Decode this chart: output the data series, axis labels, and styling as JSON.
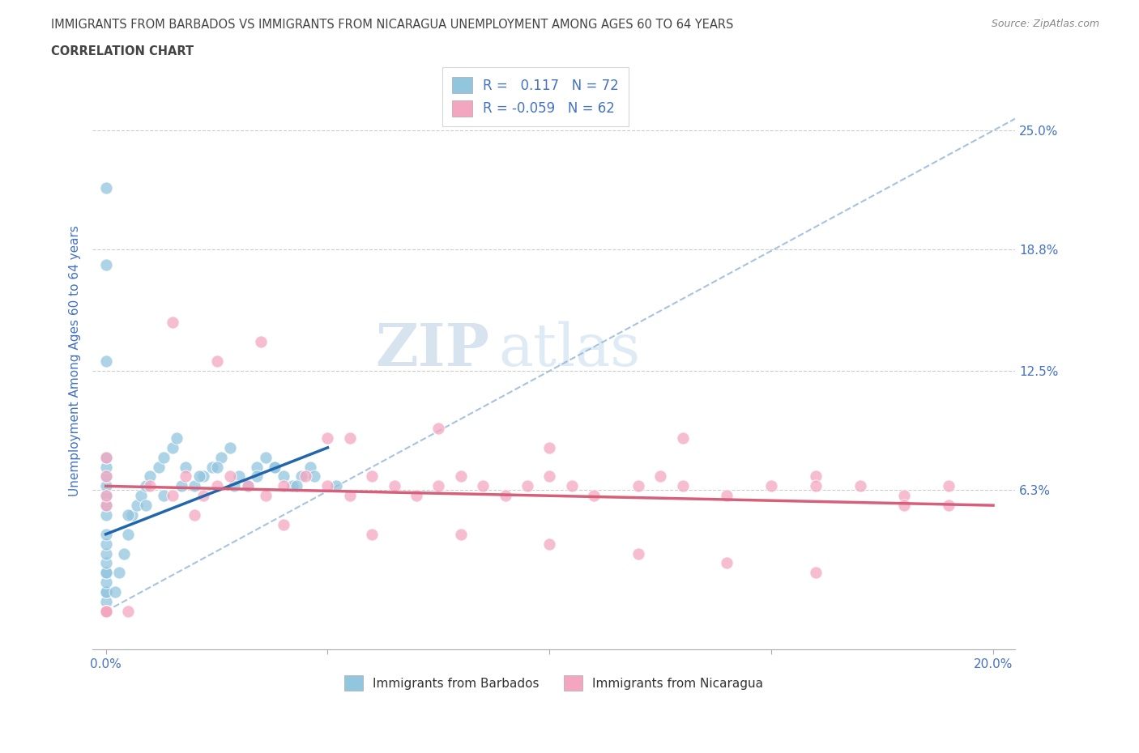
{
  "title_line1": "IMMIGRANTS FROM BARBADOS VS IMMIGRANTS FROM NICARAGUA UNEMPLOYMENT AMONG AGES 60 TO 64 YEARS",
  "title_line2": "CORRELATION CHART",
  "source_text": "Source: ZipAtlas.com",
  "ylabel": "Unemployment Among Ages 60 to 64 years",
  "xlim": [
    -0.003,
    0.205
  ],
  "ylim": [
    -0.02,
    0.28
  ],
  "xticks": [
    0.0,
    0.05,
    0.1,
    0.15,
    0.2
  ],
  "xticklabels": [
    "0.0%",
    "",
    "",
    "",
    "20.0%"
  ],
  "ytick_labels_right": [
    "6.3%",
    "12.5%",
    "18.8%",
    "25.0%"
  ],
  "ytick_values_right": [
    0.063,
    0.125,
    0.188,
    0.25
  ],
  "r_barbados": 0.117,
  "n_barbados": 72,
  "r_nicaragua": -0.059,
  "n_nicaragua": 62,
  "color_barbados": "#92c5de",
  "color_nicaragua": "#f4a6c0",
  "color_trendline_barbados": "#2166ac",
  "color_trendline_nicaragua": "#d6607a",
  "color_dashed": "#92b4d8",
  "title_color": "#444444",
  "axis_label_color": "#4472c4",
  "tick_label_color": "#4472c4",
  "legend_r_color": "#4472c4",
  "watermark_color": "#c8d8ee",
  "background_color": "#ffffff",
  "grid_color": "#cccccc",
  "barbados_x": [
    0.0,
    0.0,
    0.0,
    0.0,
    0.0,
    0.0,
    0.0,
    0.0,
    0.0,
    0.0,
    0.0,
    0.0,
    0.0,
    0.0,
    0.0,
    0.0,
    0.0,
    0.0,
    0.0,
    0.0,
    0.0,
    0.0,
    0.0,
    0.0,
    0.0,
    0.0,
    0.0,
    0.0,
    0.0,
    0.0,
    0.002,
    0.003,
    0.004,
    0.005,
    0.006,
    0.007,
    0.008,
    0.009,
    0.01,
    0.012,
    0.013,
    0.015,
    0.016,
    0.018,
    0.02,
    0.022,
    0.024,
    0.026,
    0.028,
    0.03,
    0.032,
    0.034,
    0.036,
    0.038,
    0.04,
    0.042,
    0.044,
    0.046,
    0.005,
    0.009,
    0.013,
    0.017,
    0.021,
    0.025,
    0.029,
    0.034,
    0.038,
    0.043,
    0.047,
    0.052
  ],
  "barbados_y": [
    0.0,
    0.0,
    0.0,
    0.0,
    0.0,
    0.0,
    0.0,
    0.0,
    0.0,
    0.0,
    0.005,
    0.01,
    0.01,
    0.015,
    0.02,
    0.02,
    0.025,
    0.03,
    0.035,
    0.04,
    0.05,
    0.055,
    0.06,
    0.065,
    0.07,
    0.075,
    0.08,
    0.13,
    0.18,
    0.22,
    0.01,
    0.02,
    0.03,
    0.04,
    0.05,
    0.055,
    0.06,
    0.065,
    0.07,
    0.075,
    0.08,
    0.085,
    0.09,
    0.075,
    0.065,
    0.07,
    0.075,
    0.08,
    0.085,
    0.07,
    0.065,
    0.075,
    0.08,
    0.075,
    0.07,
    0.065,
    0.07,
    0.075,
    0.05,
    0.055,
    0.06,
    0.065,
    0.07,
    0.075,
    0.065,
    0.07,
    0.075,
    0.065,
    0.07,
    0.065
  ],
  "nicaragua_x": [
    0.0,
    0.0,
    0.0,
    0.0,
    0.0,
    0.0,
    0.0,
    0.0,
    0.0,
    0.0,
    0.005,
    0.01,
    0.015,
    0.018,
    0.022,
    0.025,
    0.028,
    0.032,
    0.036,
    0.04,
    0.045,
    0.05,
    0.055,
    0.06,
    0.065,
    0.07,
    0.075,
    0.08,
    0.085,
    0.09,
    0.095,
    0.1,
    0.105,
    0.11,
    0.12,
    0.125,
    0.13,
    0.14,
    0.15,
    0.16,
    0.17,
    0.18,
    0.19,
    0.025,
    0.05,
    0.075,
    0.1,
    0.13,
    0.16,
    0.19,
    0.02,
    0.04,
    0.06,
    0.08,
    0.1,
    0.12,
    0.14,
    0.16,
    0.18,
    0.015,
    0.035,
    0.055
  ],
  "nicaragua_y": [
    0.0,
    0.0,
    0.0,
    0.0,
    0.0,
    0.0,
    0.055,
    0.06,
    0.07,
    0.08,
    0.0,
    0.065,
    0.06,
    0.07,
    0.06,
    0.065,
    0.07,
    0.065,
    0.06,
    0.065,
    0.07,
    0.065,
    0.06,
    0.07,
    0.065,
    0.06,
    0.065,
    0.07,
    0.065,
    0.06,
    0.065,
    0.07,
    0.065,
    0.06,
    0.065,
    0.07,
    0.065,
    0.06,
    0.065,
    0.07,
    0.065,
    0.06,
    0.065,
    0.13,
    0.09,
    0.095,
    0.085,
    0.09,
    0.065,
    0.055,
    0.05,
    0.045,
    0.04,
    0.04,
    0.035,
    0.03,
    0.025,
    0.02,
    0.055,
    0.15,
    0.14,
    0.09
  ],
  "barbados_trend_x": [
    0.0,
    0.05
  ],
  "barbados_trend_y": [
    0.04,
    0.085
  ],
  "nicaragua_trend_x": [
    0.0,
    0.2
  ],
  "nicaragua_trend_y": [
    0.065,
    0.055
  ],
  "dashed_line_x": [
    0.0,
    0.205
  ],
  "dashed_line_y": [
    0.0,
    0.256
  ]
}
